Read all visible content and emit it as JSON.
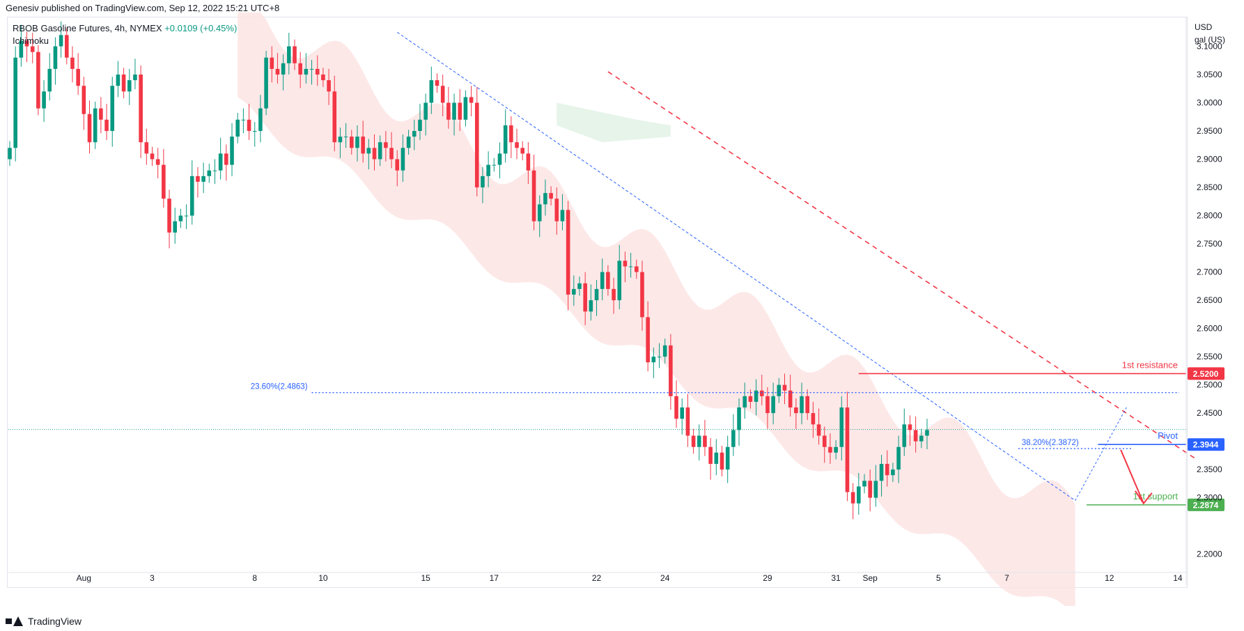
{
  "header": {
    "published": "Genesiv published on TradingView.com, Sep 12, 2022 15:21 UTC+8"
  },
  "legend": {
    "symbol": "RBOB Gasoline Futures, 4h, NYMEX",
    "change": "+0.0109 (+0.45%)",
    "indicator": "Ichimoku"
  },
  "footer": {
    "brand": "TradingView"
  },
  "colors": {
    "up": "#089981",
    "down": "#f23645",
    "cloud_bear": "#fde4e4",
    "cloud_bull": "#e3f3e8",
    "resistance": "#f23645",
    "support": "#4caf50",
    "pivot": "#2962ff",
    "fib": "#2962ff"
  },
  "chart_data": {
    "type": "candlestick",
    "y_unit": "USD gal (US)",
    "y_unit_line1": "USD",
    "y_unit_line2": "gal (US)",
    "ylim": [
      2.17,
      3.15
    ],
    "y_ticks": [
      3.1,
      3.05,
      3.0,
      2.95,
      2.9,
      2.85,
      2.8,
      2.75,
      2.7,
      2.65,
      2.6,
      2.55,
      2.5,
      2.45,
      2.35,
      2.3,
      2.2
    ],
    "y_tick_labels": [
      "3.1000",
      "3.0500",
      "3.0000",
      "2.9500",
      "2.9000",
      "2.8500",
      "2.8000",
      "2.7500",
      "2.7000",
      "2.6500",
      "2.6000",
      "2.5500",
      "2.5000",
      "2.4500",
      "2.3500",
      "2.3000",
      "2.2000"
    ],
    "x_ticks": [
      {
        "label": "Aug",
        "bar": 13
      },
      {
        "label": "3",
        "bar": 25
      },
      {
        "label": "8",
        "bar": 43
      },
      {
        "label": "10",
        "bar": 55
      },
      {
        "label": "15",
        "bar": 73
      },
      {
        "label": "17",
        "bar": 85
      },
      {
        "label": "22",
        "bar": 103
      },
      {
        "label": "24",
        "bar": 115
      },
      {
        "label": "29",
        "bar": 133
      },
      {
        "label": "31",
        "bar": 145
      },
      {
        "label": "Sep",
        "bar": 151
      },
      {
        "label": "5",
        "bar": 163
      },
      {
        "label": "7",
        "bar": 175
      },
      {
        "label": "12",
        "bar": 193
      },
      {
        "label": "14",
        "bar": 205
      }
    ],
    "closes": [
      2.92,
      3.08,
      3.11,
      3.1,
      3.09,
      2.99,
      3.02,
      3.06,
      3.1,
      3.12,
      3.08,
      3.06,
      3.03,
      2.98,
      2.93,
      2.99,
      2.97,
      2.95,
      3.03,
      3.05,
      3.02,
      3.04,
      3.05,
      2.93,
      2.91,
      2.9,
      2.89,
      2.83,
      2.77,
      2.79,
      2.8,
      2.8,
      2.87,
      2.86,
      2.87,
      2.88,
      2.88,
      2.91,
      2.89,
      2.94,
      2.97,
      2.97,
      2.95,
      2.95,
      2.99,
      3.08,
      3.06,
      3.05,
      3.07,
      3.1,
      3.07,
      3.05,
      3.06,
      3.06,
      3.05,
      3.04,
      3.02,
      2.93,
      2.94,
      2.94,
      2.92,
      2.94,
      2.91,
      2.92,
      2.9,
      2.93,
      2.92,
      2.9,
      2.88,
      2.92,
      2.94,
      2.95,
      2.97,
      3.0,
      3.04,
      3.03,
      3.0,
      2.97,
      3.0,
      2.97,
      3.01,
      3.0,
      2.85,
      2.87,
      2.89,
      2.89,
      2.91,
      2.96,
      2.93,
      2.92,
      2.91,
      2.88,
      2.79,
      2.82,
      2.84,
      2.83,
      2.79,
      2.81,
      2.66,
      2.67,
      2.68,
      2.63,
      2.65,
      2.67,
      2.7,
      2.67,
      2.65,
      2.72,
      2.71,
      2.71,
      2.7,
      2.62,
      2.54,
      2.55,
      2.55,
      2.57,
      2.48,
      2.44,
      2.46,
      2.41,
      2.39,
      2.41,
      2.39,
      2.36,
      2.38,
      2.35,
      2.39,
      2.42,
      2.46,
      2.48,
      2.47,
      2.49,
      2.48,
      2.45,
      2.48,
      2.5,
      2.49,
      2.46,
      2.45,
      2.48,
      2.45,
      2.43,
      2.41,
      2.39,
      2.38,
      2.39,
      2.46,
      2.31,
      2.29,
      2.32,
      2.33,
      2.3,
      2.33,
      2.36,
      2.34,
      2.35,
      2.39,
      2.43,
      2.42,
      2.4,
      2.41,
      2.42
    ],
    "price_line": 2.421,
    "levels": [
      {
        "name": "1st resistance",
        "value": 2.52,
        "label": "2.5200"
      },
      {
        "name": "Pivot",
        "value": 2.3944,
        "label": "2.3944"
      },
      {
        "name": "1st support",
        "value": 2.2874,
        "label": "2.2874"
      }
    ],
    "fib": [
      {
        "label": "23.60%(2.4863)",
        "value": 2.4863
      },
      {
        "label": "38.20%(2.3872)",
        "value": 2.3872
      }
    ]
  }
}
